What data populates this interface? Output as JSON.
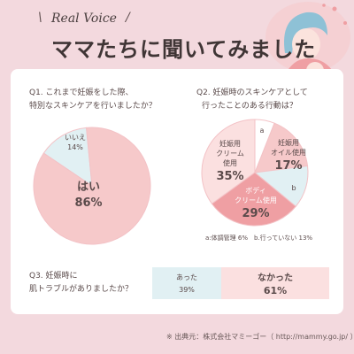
{
  "header": {
    "kicker": "Real Voice",
    "title": "ママたちに聞いてみました"
  },
  "colors": {
    "background": "#f3d9de",
    "card": "#ffffff",
    "pink_main": "#f6c9ca",
    "pink_mid": "#ef9fa3",
    "pink_light": "#fbe0e0",
    "blue_light": "#e1f0f3"
  },
  "q1": {
    "question_line1": "Q1. これまで妊娠をした際、",
    "question_line2": "特別なスキンケアを行いましたか？",
    "slices": [
      {
        "label": "はい",
        "value_text": "86%",
        "value": 86,
        "color": "#f6c9ca"
      },
      {
        "label": "いいえ",
        "value_text": "14%",
        "value": 14,
        "color": "#e1f0f3"
      }
    ]
  },
  "q2": {
    "question_line1": "Q2. 妊娠時のスキンケアとして",
    "question_line2": "行ったことのある行動は？",
    "slices": [
      {
        "label_lines": [
          "妊娠用",
          "クリーム",
          "使用"
        ],
        "value_text": "35%",
        "value": 35,
        "color": "#fbe0e0"
      },
      {
        "label_lines": [
          "a"
        ],
        "value_text": "",
        "value": 6,
        "color": "#ffffff"
      },
      {
        "label_lines": [
          "妊娠用",
          "オイル使用"
        ],
        "value_text": "17%",
        "value": 17,
        "color": "#f6c9ca"
      },
      {
        "label_lines": [
          "b"
        ],
        "value_text": "",
        "value": 13,
        "color": "#e1f0f3"
      },
      {
        "label_lines": [
          "ボディ",
          "クリーム使用"
        ],
        "value_text": "29%",
        "value": 29,
        "color": "#ef9fa3"
      }
    ],
    "note": "a:体調管理 6%　b.行っていない 13%"
  },
  "q3": {
    "question_line1": "Q3. 妊娠時に",
    "question_line2": "肌トラブルがありましたか？",
    "segments": [
      {
        "label": "あった",
        "value_text": "39%",
        "value": 39,
        "color": "#e1f0f3"
      },
      {
        "label": "なかった",
        "value_text": "61%",
        "value": 61,
        "color": "#fbe0e0"
      }
    ]
  },
  "source": "※ 出典元：株式会社マミーゴー（ http://mammy.go.jp/ ）",
  "chart_data": [
    {
      "type": "pie",
      "title": "Q1. これまで妊娠をした際、特別なスキンケアを行いましたか？",
      "categories": [
        "はい",
        "いいえ"
      ],
      "values": [
        86,
        14
      ]
    },
    {
      "type": "pie",
      "title": "Q2. 妊娠時のスキンケアとして行ったことのある行動は？",
      "categories": [
        "妊娠用クリーム使用",
        "a:体調管理",
        "妊娠用オイル使用",
        "b.行っていない",
        "ボディクリーム使用"
      ],
      "values": [
        35,
        6,
        17,
        13,
        29
      ]
    },
    {
      "type": "bar",
      "title": "Q3. 妊娠時に肌トラブルがありましたか？",
      "categories": [
        "あった",
        "なかった"
      ],
      "values": [
        39,
        61
      ]
    }
  ]
}
